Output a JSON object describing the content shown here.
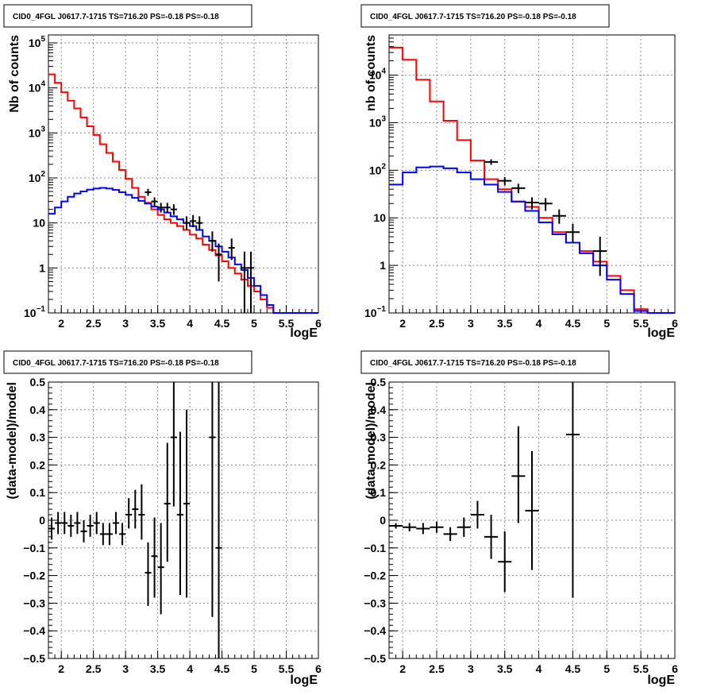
{
  "charts": [
    {
      "title": "CID0_4FGL J0617.7-1715 TS=716.20 PS=-0.18 PS=-0.18",
      "xlabel": "logE",
      "ylabel": "Nb of counts"
    },
    {
      "title": "CID0_4FGL J0617.7-1715 TS=716.20 PS=-0.18 PS=-0.18",
      "xlabel": "logE",
      "ylabel": "nb of counts"
    },
    {
      "title": "CID0_4FGL J0617.7-1715 TS=716.20 PS=-0.18 PS=-0.18",
      "xlabel": "logE",
      "ylabel": "(data-model)/model"
    },
    {
      "title": "CID0_4FGL J0617.7-1715 TS=716.20 PS=-0.18 PS=-0.18",
      "xlabel": "logE",
      "ylabel": "(data-model)/model"
    }
  ],
  "colors": {
    "total_model": "#ff0000",
    "source_model": "#0000ff",
    "data": "#000000",
    "grid": "#888888"
  },
  "chart_data": [
    {
      "type": "line",
      "log_y": true,
      "xlim": [
        1.8,
        6.0
      ],
      "ylim": [
        0.1,
        150000
      ],
      "grid": true,
      "x_ticks": [
        "2",
        "2.5",
        "3",
        "3.5",
        "4",
        "4.5",
        "5",
        "5.5",
        "6"
      ],
      "y_tick_values": [
        0.1,
        1,
        10,
        100,
        1000,
        10000,
        100000
      ],
      "y_tick_labels": [
        [
          "10",
          "−1"
        ],
        [
          "1",
          ""
        ],
        [
          "10",
          ""
        ],
        [
          "10",
          "2"
        ],
        [
          "10",
          "3"
        ],
        [
          "10",
          "4"
        ],
        [
          "10",
          "5"
        ]
      ],
      "bin_edges": [
        1.8,
        1.9,
        2.0,
        2.1,
        2.2,
        2.3,
        2.4,
        2.5,
        2.6,
        2.7,
        2.8,
        2.9,
        3.0,
        3.1,
        3.2,
        3.3,
        3.4,
        3.5,
        3.6,
        3.7,
        3.8,
        3.9,
        4.0,
        4.1,
        4.2,
        4.3,
        4.4,
        4.5,
        4.6,
        4.7,
        4.8,
        4.9,
        5.0,
        5.1,
        5.2,
        5.3,
        5.4,
        5.5,
        5.6,
        5.7,
        5.8,
        5.9,
        6.0
      ],
      "series": [
        {
          "role": "total_model",
          "style": "step",
          "values": [
            20000,
            13000,
            8000,
            5200,
            3500,
            2200,
            1400,
            900,
            560,
            360,
            230,
            150,
            95,
            60,
            38,
            28,
            20,
            15,
            12,
            10,
            8.5,
            7,
            5.5,
            4.5,
            3.3,
            2.5,
            1.9,
            1.4,
            1.0,
            0.75,
            0.55,
            0.4,
            0.3,
            0.2,
            0.13,
            0.1,
            0.1,
            0.1,
            0.1,
            0.1,
            0.1,
            0.1
          ]
        },
        {
          "role": "source_model",
          "style": "step",
          "values": [
            16,
            22,
            30,
            38,
            45,
            50,
            55,
            58,
            60,
            58,
            54,
            48,
            42,
            36,
            31,
            27,
            23,
            20,
            17,
            14,
            12,
            10,
            8.5,
            7,
            5,
            4,
            3,
            2.3,
            1.7,
            1.2,
            0.9,
            0.6,
            0.4,
            0.25,
            0.15,
            0.1,
            0.1,
            0.1,
            0.1,
            0.1,
            0.1,
            0.1
          ]
        },
        {
          "role": "data",
          "style": "errorbar",
          "x_half_width": 0.05,
          "points": [
            {
              "x": 3.35,
              "y": 48,
              "lo": 40,
              "hi": 57
            },
            {
              "x": 3.45,
              "y": 30,
              "lo": 24,
              "hi": 37
            },
            {
              "x": 3.55,
              "y": 22,
              "lo": 17,
              "hi": 28
            },
            {
              "x": 3.65,
              "y": 22,
              "lo": 17,
              "hi": 28
            },
            {
              "x": 3.75,
              "y": 20,
              "lo": 15,
              "hi": 26
            },
            {
              "x": 3.95,
              "y": 10,
              "lo": 7,
              "hi": 14
            },
            {
              "x": 4.05,
              "y": 11,
              "lo": 8,
              "hi": 15
            },
            {
              "x": 4.15,
              "y": 10,
              "lo": 7,
              "hi": 14
            },
            {
              "x": 4.35,
              "y": 4.0,
              "lo": 2.3,
              "hi": 6.5
            },
            {
              "x": 4.45,
              "y": 2.0,
              "lo": 0.5,
              "hi": 3.5
            },
            {
              "x": 4.65,
              "y": 2.8,
              "lo": 1.5,
              "hi": 4.5
            },
            {
              "x": 4.85,
              "y": 1.0,
              "lo": 0.1,
              "hi": 2.3
            },
            {
              "x": 4.95,
              "y": 1.0,
              "lo": 0.1,
              "hi": 2.3
            }
          ]
        }
      ]
    },
    {
      "type": "line",
      "log_y": true,
      "xlim": [
        1.8,
        6.0
      ],
      "ylim": [
        0.1,
        70000
      ],
      "grid": true,
      "x_ticks": [
        "2",
        "2.5",
        "3",
        "3.5",
        "4",
        "4.5",
        "5",
        "5.5",
        "6"
      ],
      "y_tick_values": [
        0.1,
        1,
        10,
        100,
        1000,
        10000
      ],
      "y_tick_labels": [
        [
          "10",
          "−1"
        ],
        [
          "1",
          ""
        ],
        [
          "10",
          ""
        ],
        [
          "10",
          "2"
        ],
        [
          "10",
          "3"
        ],
        [
          "10",
          "4"
        ]
      ],
      "bin_edges": [
        1.8,
        2.0,
        2.2,
        2.4,
        2.6,
        2.8,
        3.0,
        3.2,
        3.4,
        3.6,
        3.8,
        4.0,
        4.2,
        4.4,
        4.6,
        4.8,
        5.0,
        5.2,
        5.4,
        5.6,
        5.8,
        6.0
      ],
      "series": [
        {
          "role": "total_model",
          "style": "step",
          "values": [
            38000,
            21000,
            8000,
            2800,
            1100,
            430,
            160,
            65,
            40,
            22,
            17,
            10,
            5,
            3,
            2,
            1.2,
            0.6,
            0.3,
            0.12,
            0.1,
            0.1
          ]
        },
        {
          "role": "source_model",
          "style": "step",
          "values": [
            50,
            90,
            115,
            120,
            110,
            90,
            65,
            50,
            35,
            22,
            14,
            8,
            4.5,
            3,
            1.8,
            1,
            0.5,
            0.25,
            0.11,
            0.1,
            0.1
          ]
        },
        {
          "role": "data",
          "style": "errorbar",
          "x_half_width": 0.1,
          "points": [
            {
              "x": 3.3,
              "y": 150,
              "lo": 130,
              "hi": 170
            },
            {
              "x": 3.5,
              "y": 60,
              "lo": 48,
              "hi": 72
            },
            {
              "x": 3.7,
              "y": 42,
              "lo": 33,
              "hi": 52
            },
            {
              "x": 3.9,
              "y": 21,
              "lo": 15,
              "hi": 27
            },
            {
              "x": 4.1,
              "y": 20,
              "lo": 14,
              "hi": 26
            },
            {
              "x": 4.3,
              "y": 11,
              "lo": 7.5,
              "hi": 15
            },
            {
              "x": 4.5,
              "y": 5,
              "lo": 3,
              "hi": 7.5
            },
            {
              "x": 4.9,
              "y": 2,
              "lo": 0.6,
              "hi": 4
            }
          ]
        }
      ]
    },
    {
      "type": "scatter",
      "log_y": false,
      "xlim": [
        1.8,
        6.0
      ],
      "ylim": [
        -0.5,
        0.5
      ],
      "grid": true,
      "x_ticks": [
        "2",
        "2.5",
        "3",
        "3.5",
        "4",
        "4.5",
        "5",
        "5.5",
        "6"
      ],
      "y_tick_labels": [
        "−0.5",
        "−0.4",
        "−0.3",
        "−0.2",
        "−0.1",
        "0",
        "0.1",
        "0.2",
        "0.3",
        "0.4",
        "0.5"
      ],
      "series": [
        {
          "role": "data",
          "style": "errorbar",
          "x_half_width": 0.05,
          "points": [
            {
              "x": 1.85,
              "y": -0.03,
              "lo": -0.07,
              "hi": 0.01
            },
            {
              "x": 1.95,
              "y": -0.01,
              "lo": -0.05,
              "hi": 0.03
            },
            {
              "x": 2.05,
              "y": -0.01,
              "lo": -0.05,
              "hi": 0.03
            },
            {
              "x": 2.15,
              "y": -0.02,
              "lo": -0.06,
              "hi": 0.02
            },
            {
              "x": 2.25,
              "y": -0.01,
              "lo": -0.05,
              "hi": 0.03
            },
            {
              "x": 2.35,
              "y": -0.04,
              "lo": -0.08,
              "hi": 0.0
            },
            {
              "x": 2.45,
              "y": -0.02,
              "lo": -0.06,
              "hi": 0.02
            },
            {
              "x": 2.55,
              "y": -0.01,
              "lo": -0.05,
              "hi": 0.03
            },
            {
              "x": 2.65,
              "y": -0.05,
              "lo": -0.09,
              "hi": -0.01
            },
            {
              "x": 2.75,
              "y": -0.05,
              "lo": -0.09,
              "hi": -0.01
            },
            {
              "x": 2.85,
              "y": -0.01,
              "lo": -0.05,
              "hi": 0.03
            },
            {
              "x": 2.95,
              "y": -0.05,
              "lo": -0.09,
              "hi": -0.01
            },
            {
              "x": 3.05,
              "y": 0.02,
              "lo": -0.03,
              "hi": 0.08
            },
            {
              "x": 3.15,
              "y": 0.04,
              "lo": -0.03,
              "hi": 0.11
            },
            {
              "x": 3.25,
              "y": 0.02,
              "lo": -0.07,
              "hi": 0.13
            },
            {
              "x": 3.35,
              "y": -0.19,
              "lo": -0.31,
              "hi": -0.08
            },
            {
              "x": 3.45,
              "y": -0.13,
              "lo": -0.28,
              "hi": 0.01
            },
            {
              "x": 3.55,
              "y": -0.17,
              "lo": -0.34,
              "hi": -0.01
            },
            {
              "x": 3.65,
              "y": 0.06,
              "lo": -0.15,
              "hi": 0.28
            },
            {
              "x": 3.75,
              "y": 0.3,
              "lo": 0.05,
              "hi": 0.5
            },
            {
              "x": 3.85,
              "y": 0.02,
              "lo": -0.27,
              "hi": 0.32
            },
            {
              "x": 3.95,
              "y": 0.06,
              "lo": -0.28,
              "hi": 0.4
            },
            {
              "x": 4.35,
              "y": 0.3,
              "lo": -0.35,
              "hi": 0.5
            },
            {
              "x": 4.45,
              "y": -0.1,
              "lo": -0.5,
              "hi": 0.5
            }
          ]
        }
      ]
    },
    {
      "type": "scatter",
      "log_y": false,
      "xlim": [
        1.8,
        6.0
      ],
      "ylim": [
        -0.5,
        0.5
      ],
      "grid": true,
      "x_ticks": [
        "2",
        "2.5",
        "3",
        "3.5",
        "4",
        "4.5",
        "5",
        "5.5",
        "6"
      ],
      "y_tick_labels": [
        "−0.5",
        "−0.4",
        "−0.3",
        "−0.2",
        "−0.1",
        "0",
        "0.1",
        "0.2",
        "0.3",
        "0.4",
        "0.5"
      ],
      "series": [
        {
          "role": "data",
          "style": "errorbar",
          "x_half_width": 0.1,
          "points": [
            {
              "x": 1.9,
              "y": -0.02,
              "lo": -0.03,
              "hi": -0.01
            },
            {
              "x": 2.1,
              "y": -0.025,
              "lo": -0.04,
              "hi": -0.01
            },
            {
              "x": 2.3,
              "y": -0.03,
              "lo": -0.05,
              "hi": -0.01
            },
            {
              "x": 2.5,
              "y": -0.025,
              "lo": -0.045,
              "hi": -0.005
            },
            {
              "x": 2.7,
              "y": -0.05,
              "lo": -0.075,
              "hi": -0.025
            },
            {
              "x": 2.9,
              "y": -0.025,
              "lo": -0.06,
              "hi": 0.01
            },
            {
              "x": 3.1,
              "y": 0.02,
              "lo": -0.03,
              "hi": 0.07
            },
            {
              "x": 3.3,
              "y": -0.06,
              "lo": -0.14,
              "hi": 0.02
            },
            {
              "x": 3.5,
              "y": -0.15,
              "lo": -0.26,
              "hi": -0.04
            },
            {
              "x": 3.7,
              "y": 0.16,
              "lo": -0.01,
              "hi": 0.34
            },
            {
              "x": 3.9,
              "y": 0.035,
              "lo": -0.18,
              "hi": 0.25
            },
            {
              "x": 4.5,
              "y": 0.31,
              "lo": -0.28,
              "hi": 0.5
            }
          ]
        }
      ]
    }
  ]
}
